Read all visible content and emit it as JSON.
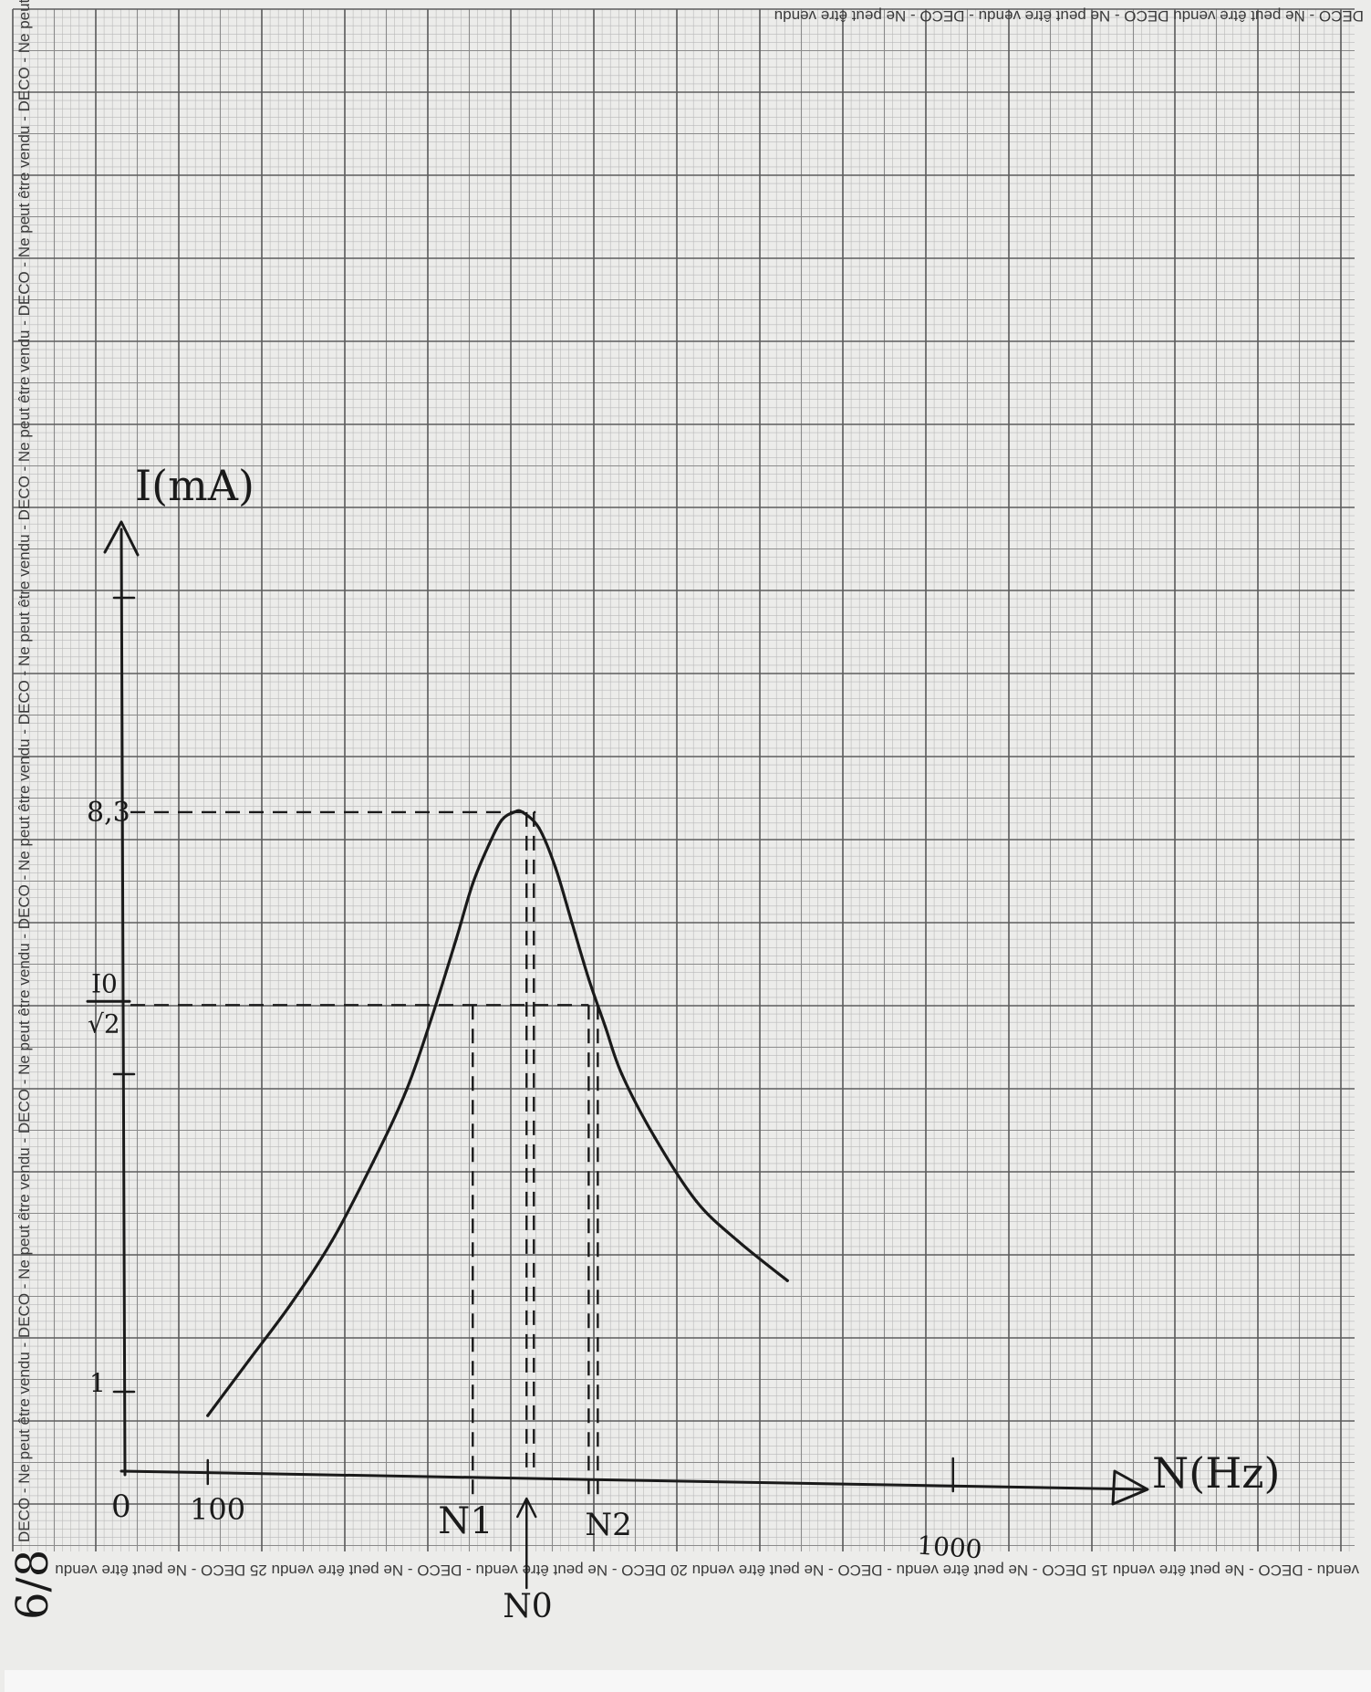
{
  "page": {
    "page_number": "6/8",
    "margin_text": {
      "left": "DECO - Ne peut être vendu - DECO - Ne peut être vendu - DECO - Ne peut être vendu - DECO - Ne peut être vendu - DECO - Ne peut être vendu - DECO - Ne peut être vendu - DECO - Ne peut être vendu - DECO - Ne peut être vendu - DECO - Ne peut être vendu",
      "top": "DECO - Ne peut être vendu    DECO - Ne peut être vendu - DECO - Ne peut être vendu",
      "bottom": "vendu - DECO - Ne peut être vendu   15   DECO - Ne peut être vendu - DECO - Ne peut être vendu   20   DECO - Ne peut être vendu - DECO - Ne peut être vendu   25   DECO - Ne peut être vendu",
      "bottom_numbers": [
        "25",
        "20",
        "15"
      ]
    }
  },
  "chart_data": {
    "type": "line",
    "title": "",
    "xlabel": "N(Hz)",
    "ylabel": "I(mA)",
    "x_tick_labels": [
      "0",
      "100",
      "1000"
    ],
    "y_tick_labels": [
      "1",
      "8,3"
    ],
    "annotations": {
      "peak_label": "8,3",
      "half_power_label_num": "I0",
      "half_power_label_den": "√2",
      "n1": "N1",
      "n0": "N0",
      "n2": "N2"
    },
    "series": [
      {
        "values_x": [
          100,
          150,
          200,
          250,
          300,
          340,
          370,
          400,
          420,
          440,
          455,
          470,
          480,
          500,
          520,
          540,
          560,
          580,
          600,
          640,
          690,
          740,
          800
        ],
        "values_y": [
          0.7,
          1.4,
          2.1,
          2.9,
          3.9,
          4.8,
          5.7,
          6.7,
          7.4,
          7.9,
          8.2,
          8.3,
          8.3,
          8.1,
          7.6,
          6.9,
          6.2,
          5.6,
          5.0,
          4.2,
          3.4,
          2.9,
          2.4
        ]
      }
    ],
    "guide_lines": {
      "peak_y": 8.3,
      "half_power_y": 5.87,
      "n1_x": 420,
      "n0_x": 485,
      "n2_x": 560
    },
    "xlim": [
      0,
      1300
    ],
    "ylim": [
      0,
      11
    ],
    "grid": true
  }
}
